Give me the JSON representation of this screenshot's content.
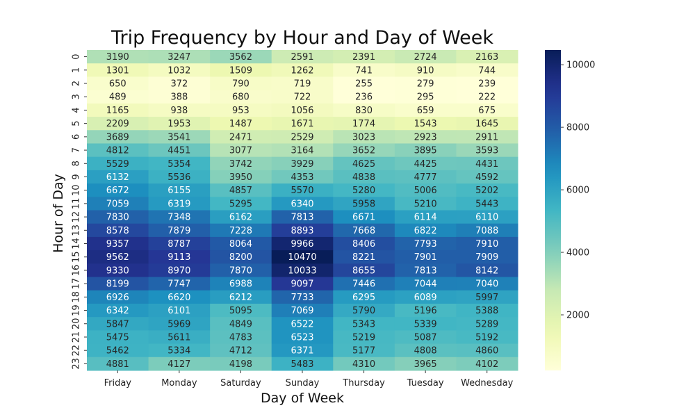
{
  "chart_data": {
    "type": "heatmap",
    "title": "Trip Frequency by Hour and Day of Week",
    "xlabel": "Day of Week",
    "ylabel": "Hour of Day",
    "x_categories": [
      "Friday",
      "Monday",
      "Saturday",
      "Sunday",
      "Thursday",
      "Tuesday",
      "Wednesday"
    ],
    "y_categories": [
      "0",
      "1",
      "2",
      "3",
      "4",
      "5",
      "6",
      "7",
      "8",
      "9",
      "10",
      "11",
      "12",
      "13",
      "14",
      "15",
      "16",
      "17",
      "18",
      "19",
      "20",
      "21",
      "22",
      "23"
    ],
    "values": [
      [
        3190,
        3247,
        3562,
        2591,
        2391,
        2724,
        2163
      ],
      [
        1301,
        1032,
        1509,
        1262,
        741,
        910,
        744
      ],
      [
        650,
        372,
        790,
        719,
        255,
        279,
        239
      ],
      [
        489,
        388,
        680,
        722,
        236,
        295,
        222
      ],
      [
        1165,
        938,
        953,
        1056,
        830,
        659,
        675
      ],
      [
        2209,
        1953,
        1487,
        1671,
        1774,
        1543,
        1645
      ],
      [
        3689,
        3541,
        2471,
        2529,
        3023,
        2923,
        2911
      ],
      [
        4812,
        4451,
        3077,
        3164,
        3652,
        3895,
        3593
      ],
      [
        5529,
        5354,
        3742,
        3929,
        4625,
        4425,
        4431
      ],
      [
        6132,
        5536,
        3950,
        4353,
        4838,
        4777,
        4592
      ],
      [
        6672,
        6155,
        4857,
        5570,
        5280,
        5006,
        5202
      ],
      [
        7059,
        6319,
        5295,
        6340,
        5958,
        5210,
        5443
      ],
      [
        7830,
        7348,
        6162,
        7813,
        6671,
        6114,
        6110
      ],
      [
        8578,
        7879,
        7228,
        8893,
        7668,
        6822,
        7088
      ],
      [
        9357,
        8787,
        8064,
        9966,
        8406,
        7793,
        7910
      ],
      [
        9562,
        9113,
        8200,
        10470,
        8221,
        7901,
        7909
      ],
      [
        9330,
        8970,
        7870,
        10033,
        8655,
        7813,
        8142
      ],
      [
        8199,
        7747,
        6988,
        9097,
        7446,
        7044,
        7040
      ],
      [
        6926,
        6620,
        6212,
        7733,
        6295,
        6089,
        5997
      ],
      [
        6342,
        6101,
        5095,
        7069,
        5790,
        5196,
        5388
      ],
      [
        5847,
        5969,
        4849,
        6522,
        5343,
        5339,
        5289
      ],
      [
        5475,
        5611,
        4783,
        6523,
        5219,
        5087,
        5192
      ],
      [
        5462,
        5334,
        4712,
        6371,
        5177,
        4808,
        4860
      ],
      [
        4881,
        4127,
        4198,
        5483,
        4310,
        3965,
        4102
      ]
    ],
    "colormap": "YlGnBu",
    "color_range": [
      222,
      10470
    ],
    "colorbar_ticks": [
      2000,
      4000,
      6000,
      8000,
      10000
    ],
    "colorbar_tick_labels": [
      "2000",
      "4000",
      "6000",
      "8000",
      "10000"
    ]
  }
}
